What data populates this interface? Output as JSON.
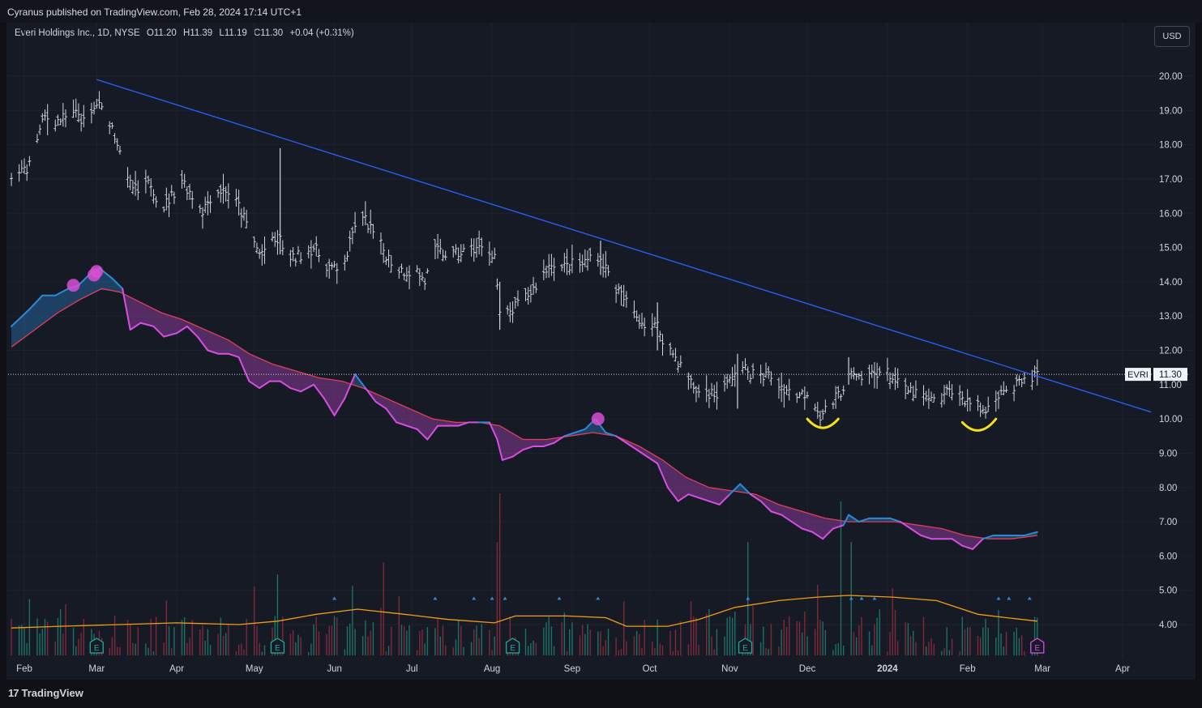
{
  "header": {
    "published": "Cyranus published on TradingView.com, Feb 28, 2024 17:14 UTC+1"
  },
  "legend": {
    "symbol": "Everi Holdings Inc., 1D, NYSE",
    "o_label": "O",
    "o_value": "11.20",
    "h_label": "H",
    "h_value": "11.39",
    "l_label": "L",
    "l_value": "11.19",
    "c_label": "C",
    "c_value": "11.30",
    "change": "+0.04 (+0.31%)"
  },
  "currency_button": "USD",
  "footer": {
    "brand": "TradingView"
  },
  "colors": {
    "background": "#161a25",
    "price_bars": "#d1d4dc",
    "trendline": "#2962ff",
    "osc_bull": "#2b8ad6",
    "osc_bear": "#d64fe2",
    "osc_signal": "#e0405a",
    "volume_up": "#1e6f66",
    "volume_down": "#7d2a3a",
    "volume_ma": "#f39c12",
    "annotation": "#f5e21a",
    "highlight_dot": "#d84fd3"
  },
  "chart_data": {
    "type": "ohlc",
    "symbol": "EVRI",
    "last_price": "11.30",
    "y_ticks": [
      "20.00",
      "19.00",
      "18.00",
      "17.00",
      "16.00",
      "15.00",
      "14.00",
      "13.00",
      "12.00",
      "11.00",
      "10.00",
      "9.00",
      "8.00",
      "7.00",
      "6.00",
      "5.00",
      "4.00"
    ],
    "ylim": [
      3.1,
      20.8
    ],
    "x_ticks": [
      "Feb",
      "Mar",
      "Apr",
      "May",
      "Jun",
      "Jul",
      "Aug",
      "Sep",
      "Oct",
      "Nov",
      "Dec",
      "2024",
      "Feb",
      "Mar",
      "Apr"
    ],
    "x_tick_dates": [
      "2023-02-01",
      "2023-03-01",
      "2023-04-01",
      "2023-05-01",
      "2023-06-01",
      "2023-07-01",
      "2023-08-01",
      "2023-09-01",
      "2023-10-01",
      "2023-11-01",
      "2023-12-01",
      "2024-01-01",
      "2024-02-01",
      "2024-03-01",
      "2024-04-01"
    ],
    "price_close": [
      [
        "2023-01-27",
        17.0
      ],
      [
        "2023-02-03",
        17.4
      ],
      [
        "2023-02-06",
        18.2
      ],
      [
        "2023-02-09",
        18.8
      ],
      [
        "2023-02-14",
        18.7
      ],
      [
        "2023-02-18",
        18.8
      ],
      [
        "2023-02-22",
        18.9
      ],
      [
        "2023-02-25",
        18.5
      ],
      [
        "2023-03-01",
        19.2
      ],
      [
        "2023-03-06",
        18.7
      ],
      [
        "2023-03-10",
        17.9
      ],
      [
        "2023-03-13",
        16.9
      ],
      [
        "2023-03-17",
        16.6
      ],
      [
        "2023-03-22",
        16.9
      ],
      [
        "2023-03-26",
        16.1
      ],
      [
        "2023-03-30",
        16.5
      ],
      [
        "2023-04-03",
        17.0
      ],
      [
        "2023-04-07",
        16.5
      ],
      [
        "2023-04-11",
        16.1
      ],
      [
        "2023-04-15",
        16.6
      ],
      [
        "2023-04-20",
        16.7
      ],
      [
        "2023-04-25",
        16.2
      ],
      [
        "2023-04-29",
        15.5
      ],
      [
        "2023-05-03",
        14.8
      ],
      [
        "2023-05-07",
        15.1
      ],
      [
        "2023-05-11",
        15.2
      ],
      [
        "2023-05-15",
        14.6
      ],
      [
        "2023-05-19",
        14.8
      ],
      [
        "2023-05-24",
        15.0
      ],
      [
        "2023-05-29",
        14.5
      ],
      [
        "2023-06-02",
        14.3
      ],
      [
        "2023-06-06",
        14.8
      ],
      [
        "2023-06-09",
        15.7
      ],
      [
        "2023-06-13",
        15.8
      ],
      [
        "2023-06-17",
        15.3
      ],
      [
        "2023-06-21",
        14.8
      ],
      [
        "2023-06-25",
        14.4
      ],
      [
        "2023-06-29",
        14.3
      ],
      [
        "2023-07-03",
        14.3
      ],
      [
        "2023-07-06",
        14.0
      ],
      [
        "2023-07-10",
        14.9
      ],
      [
        "2023-07-14",
        14.8
      ],
      [
        "2023-07-18",
        14.8
      ],
      [
        "2023-07-22",
        14.9
      ],
      [
        "2023-07-26",
        15.0
      ],
      [
        "2023-07-30",
        14.9
      ],
      [
        "2023-08-02",
        14.8
      ],
      [
        "2023-08-04",
        13.0
      ],
      [
        "2023-08-08",
        13.1
      ],
      [
        "2023-08-12",
        13.4
      ],
      [
        "2023-08-16",
        13.7
      ],
      [
        "2023-08-20",
        14.1
      ],
      [
        "2023-08-24",
        14.6
      ],
      [
        "2023-08-28",
        14.4
      ],
      [
        "2023-09-01",
        14.5
      ],
      [
        "2023-09-05",
        14.5
      ],
      [
        "2023-09-10",
        14.9
      ],
      [
        "2023-09-14",
        14.4
      ],
      [
        "2023-09-18",
        13.8
      ],
      [
        "2023-09-22",
        13.4
      ],
      [
        "2023-09-26",
        13.0
      ],
      [
        "2023-09-30",
        12.7
      ],
      [
        "2023-10-04",
        12.7
      ],
      [
        "2023-10-07",
        12.2
      ],
      [
        "2023-10-11",
        11.8
      ],
      [
        "2023-10-15",
        11.3
      ],
      [
        "2023-10-19",
        10.8
      ],
      [
        "2023-10-23",
        10.8
      ],
      [
        "2023-10-27",
        10.7
      ],
      [
        "2023-10-31",
        11.0
      ],
      [
        "2023-11-04",
        11.5
      ],
      [
        "2023-11-08",
        11.4
      ],
      [
        "2023-11-12",
        11.2
      ],
      [
        "2023-11-16",
        11.3
      ],
      [
        "2023-11-20",
        11.0
      ],
      [
        "2023-11-24",
        10.8
      ],
      [
        "2023-11-28",
        10.7
      ],
      [
        "2023-12-02",
        10.8
      ],
      [
        "2023-12-06",
        10.1
      ],
      [
        "2023-12-10",
        10.4
      ],
      [
        "2023-12-14",
        10.8
      ],
      [
        "2023-12-17",
        11.3
      ],
      [
        "2023-12-21",
        11.1
      ],
      [
        "2023-12-25",
        11.3
      ],
      [
        "2023-12-29",
        11.4
      ],
      [
        "2024-01-02",
        11.3
      ],
      [
        "2024-01-06",
        10.9
      ],
      [
        "2024-01-10",
        10.8
      ],
      [
        "2024-01-14",
        10.7
      ],
      [
        "2024-01-18",
        10.5
      ],
      [
        "2024-01-22",
        10.6
      ],
      [
        "2024-01-26",
        10.9
      ],
      [
        "2024-01-30",
        10.6
      ],
      [
        "2024-02-03",
        10.5
      ],
      [
        "2024-02-07",
        10.2
      ],
      [
        "2024-02-10",
        10.4
      ],
      [
        "2024-02-14",
        10.9
      ],
      [
        "2024-02-17",
        10.8
      ],
      [
        "2024-02-21",
        11.0
      ],
      [
        "2024-02-24",
        11.1
      ],
      [
        "2024-02-28",
        11.3
      ]
    ],
    "spikes": [
      [
        "2023-05-11",
        14.8,
        17.9
      ],
      [
        "2023-08-04",
        12.6,
        14.0
      ],
      [
        "2023-09-12",
        14.2,
        15.2
      ],
      [
        "2023-10-04",
        12.0,
        13.4
      ],
      [
        "2023-11-04",
        10.3,
        11.9
      ],
      [
        "2023-12-17",
        11.0,
        11.8
      ]
    ],
    "trendline": [
      [
        "2023-03-01",
        19.9
      ],
      [
        "2024-04-12",
        10.2
      ]
    ],
    "oscillator": [
      [
        "2023-01-27",
        12.7
      ],
      [
        "2023-02-03",
        13.2
      ],
      [
        "2023-02-08",
        13.6
      ],
      [
        "2023-02-13",
        13.6
      ],
      [
        "2023-02-18",
        13.8
      ],
      [
        "2023-02-22",
        13.9
      ],
      [
        "2023-02-26",
        14.2
      ],
      [
        "2023-03-02",
        14.4
      ],
      [
        "2023-03-07",
        14.1
      ],
      [
        "2023-03-11",
        13.8
      ],
      [
        "2023-03-14",
        12.6
      ],
      [
        "2023-03-18",
        12.8
      ],
      [
        "2023-03-23",
        12.7
      ],
      [
        "2023-03-27",
        12.4
      ],
      [
        "2023-04-01",
        12.5
      ],
      [
        "2023-04-05",
        12.7
      ],
      [
        "2023-04-09",
        12.4
      ],
      [
        "2023-04-13",
        12.0
      ],
      [
        "2023-04-17",
        11.9
      ],
      [
        "2023-04-21",
        11.9
      ],
      [
        "2023-04-25",
        11.8
      ],
      [
        "2023-04-29",
        11.1
      ],
      [
        "2023-05-03",
        10.9
      ],
      [
        "2023-05-07",
        11.1
      ],
      [
        "2023-05-11",
        11.1
      ],
      [
        "2023-05-15",
        10.9
      ],
      [
        "2023-05-19",
        10.8
      ],
      [
        "2023-05-24",
        11.0
      ],
      [
        "2023-05-28",
        10.6
      ],
      [
        "2023-06-01",
        10.1
      ],
      [
        "2023-06-05",
        10.6
      ],
      [
        "2023-06-09",
        11.3
      ],
      [
        "2023-06-13",
        10.9
      ],
      [
        "2023-06-17",
        10.5
      ],
      [
        "2023-06-21",
        10.3
      ],
      [
        "2023-06-25",
        9.9
      ],
      [
        "2023-06-29",
        9.8
      ],
      [
        "2023-07-03",
        9.7
      ],
      [
        "2023-07-07",
        9.4
      ],
      [
        "2023-07-11",
        9.8
      ],
      [
        "2023-07-15",
        9.8
      ],
      [
        "2023-07-19",
        9.8
      ],
      [
        "2023-07-23",
        9.9
      ],
      [
        "2023-07-27",
        9.9
      ],
      [
        "2023-07-31",
        9.9
      ],
      [
        "2023-08-03",
        9.4
      ],
      [
        "2023-08-05",
        8.8
      ],
      [
        "2023-08-09",
        8.9
      ],
      [
        "2023-08-13",
        9.1
      ],
      [
        "2023-08-17",
        9.2
      ],
      [
        "2023-08-21",
        9.2
      ],
      [
        "2023-08-25",
        9.3
      ],
      [
        "2023-08-29",
        9.5
      ],
      [
        "2023-09-02",
        9.6
      ],
      [
        "2023-09-06",
        9.7
      ],
      [
        "2023-09-10",
        10.0
      ],
      [
        "2023-09-14",
        9.6
      ],
      [
        "2023-09-18",
        9.5
      ],
      [
        "2023-09-22",
        9.3
      ],
      [
        "2023-09-26",
        9.1
      ],
      [
        "2023-09-30",
        8.9
      ],
      [
        "2023-10-04",
        8.7
      ],
      [
        "2023-10-08",
        8.0
      ],
      [
        "2023-10-12",
        7.6
      ],
      [
        "2023-10-16",
        7.8
      ],
      [
        "2023-10-20",
        7.7
      ],
      [
        "2023-10-24",
        7.6
      ],
      [
        "2023-10-28",
        7.5
      ],
      [
        "2023-11-01",
        7.8
      ],
      [
        "2023-11-05",
        8.1
      ],
      [
        "2023-11-09",
        7.8
      ],
      [
        "2023-11-13",
        7.6
      ],
      [
        "2023-11-17",
        7.3
      ],
      [
        "2023-11-21",
        7.2
      ],
      [
        "2023-11-25",
        7.0
      ],
      [
        "2023-11-29",
        6.8
      ],
      [
        "2023-12-03",
        6.7
      ],
      [
        "2023-12-07",
        6.5
      ],
      [
        "2023-12-11",
        6.8
      ],
      [
        "2023-12-15",
        6.9
      ],
      [
        "2023-12-17",
        7.2
      ],
      [
        "2023-12-21",
        7.0
      ],
      [
        "2023-12-25",
        7.1
      ],
      [
        "2023-12-29",
        7.1
      ],
      [
        "2024-01-02",
        7.1
      ],
      [
        "2024-01-06",
        7.0
      ],
      [
        "2024-01-10",
        6.8
      ],
      [
        "2024-01-14",
        6.6
      ],
      [
        "2024-01-18",
        6.5
      ],
      [
        "2024-01-22",
        6.5
      ],
      [
        "2024-01-26",
        6.5
      ],
      [
        "2024-01-30",
        6.3
      ],
      [
        "2024-02-03",
        6.2
      ],
      [
        "2024-02-07",
        6.5
      ],
      [
        "2024-02-11",
        6.6
      ],
      [
        "2024-02-15",
        6.6
      ],
      [
        "2024-02-19",
        6.6
      ],
      [
        "2024-02-23",
        6.6
      ],
      [
        "2024-02-28",
        6.7
      ]
    ],
    "signal": [
      [
        "2023-01-27",
        12.1
      ],
      [
        "2023-02-05",
        12.6
      ],
      [
        "2023-02-14",
        13.1
      ],
      [
        "2023-02-23",
        13.5
      ],
      [
        "2023-03-03",
        13.8
      ],
      [
        "2023-03-10",
        13.7
      ],
      [
        "2023-03-18",
        13.4
      ],
      [
        "2023-03-26",
        13.1
      ],
      [
        "2023-04-03",
        12.9
      ],
      [
        "2023-04-12",
        12.6
      ],
      [
        "2023-04-21",
        12.3
      ],
      [
        "2023-04-29",
        11.9
      ],
      [
        "2023-05-08",
        11.6
      ],
      [
        "2023-05-17",
        11.4
      ],
      [
        "2023-05-26",
        11.2
      ],
      [
        "2023-06-04",
        11.1
      ],
      [
        "2023-06-12",
        10.9
      ],
      [
        "2023-06-21",
        10.6
      ],
      [
        "2023-06-30",
        10.3
      ],
      [
        "2023-07-09",
        10.0
      ],
      [
        "2023-07-18",
        9.9
      ],
      [
        "2023-07-27",
        9.9
      ],
      [
        "2023-08-04",
        9.8
      ],
      [
        "2023-08-13",
        9.4
      ],
      [
        "2023-08-22",
        9.4
      ],
      [
        "2023-08-31",
        9.5
      ],
      [
        "2023-09-09",
        9.6
      ],
      [
        "2023-09-18",
        9.5
      ],
      [
        "2023-09-27",
        9.2
      ],
      [
        "2023-10-06",
        8.8
      ],
      [
        "2023-10-15",
        8.3
      ],
      [
        "2023-10-24",
        8.0
      ],
      [
        "2023-11-02",
        7.9
      ],
      [
        "2023-11-11",
        7.8
      ],
      [
        "2023-11-20",
        7.5
      ],
      [
        "2023-11-29",
        7.3
      ],
      [
        "2023-12-08",
        7.1
      ],
      [
        "2023-12-17",
        7.0
      ],
      [
        "2023-12-26",
        7.0
      ],
      [
        "2024-01-04",
        7.0
      ],
      [
        "2024-01-13",
        6.9
      ],
      [
        "2024-01-22",
        6.8
      ],
      [
        "2024-01-31",
        6.6
      ],
      [
        "2024-02-09",
        6.5
      ],
      [
        "2024-02-18",
        6.5
      ],
      [
        "2024-02-28",
        6.6
      ]
    ],
    "volume_ma": [
      [
        "2023-01-27",
        3.9
      ],
      [
        "2023-02-15",
        3.95
      ],
      [
        "2023-03-10",
        4.0
      ],
      [
        "2023-04-01",
        4.05
      ],
      [
        "2023-04-25",
        4.0
      ],
      [
        "2023-05-10",
        4.1
      ],
      [
        "2023-05-25",
        4.3
      ],
      [
        "2023-06-10",
        4.45
      ],
      [
        "2023-06-28",
        4.3
      ],
      [
        "2023-07-15",
        4.15
      ],
      [
        "2023-08-02",
        4.05
      ],
      [
        "2023-08-10",
        4.25
      ],
      [
        "2023-08-30",
        4.25
      ],
      [
        "2023-09-14",
        4.2
      ],
      [
        "2023-09-22",
        3.95
      ],
      [
        "2023-10-08",
        3.95
      ],
      [
        "2023-10-20",
        4.15
      ],
      [
        "2023-11-03",
        4.5
      ],
      [
        "2023-11-20",
        4.7
      ],
      [
        "2023-12-05",
        4.8
      ],
      [
        "2023-12-17",
        4.85
      ],
      [
        "2024-01-03",
        4.8
      ],
      [
        "2024-01-20",
        4.7
      ],
      [
        "2024-02-05",
        4.3
      ],
      [
        "2024-02-16",
        4.2
      ],
      [
        "2024-02-28",
        4.1
      ]
    ],
    "yellow_arcs": [
      [
        "2023-12-01",
        10.0,
        "2023-12-13",
        10.0
      ],
      [
        "2024-01-30",
        9.9,
        "2024-02-12",
        10.0
      ]
    ],
    "highlight_dots": [
      [
        "2023-02-20",
        13.9
      ],
      [
        "2023-02-28",
        14.2
      ],
      [
        "2023-03-01",
        14.3
      ],
      [
        "2023-09-11",
        10.0
      ]
    ],
    "earnings_markers": [
      {
        "date": "2023-03-01",
        "label": "E"
      },
      {
        "date": "2023-05-10",
        "label": "E"
      },
      {
        "date": "2023-08-09",
        "label": "E"
      },
      {
        "date": "2023-11-07",
        "label": "E"
      },
      {
        "date": "2024-02-28",
        "label": "E"
      }
    ],
    "volume_ticks": [
      "2023-06-01",
      "2023-07-10",
      "2023-07-25",
      "2023-08-01",
      "2023-08-06",
      "2023-08-27",
      "2023-09-11",
      "2023-11-08",
      "2023-12-18",
      "2023-12-22",
      "2023-12-27",
      "2024-02-13",
      "2024-02-17",
      "2024-02-25"
    ]
  }
}
